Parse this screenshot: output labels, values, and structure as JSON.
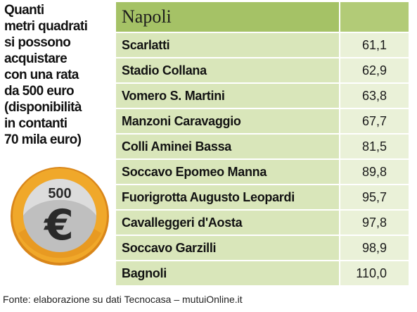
{
  "intro": {
    "lines": [
      "Quanti",
      "metri quadrati",
      "si possono",
      "acquistare",
      "con una rata",
      "da 500 euro",
      "(disponibilità",
      "in contanti",
      "70 mila euro)"
    ]
  },
  "coin": {
    "amount": "500",
    "symbol": "€",
    "colors": {
      "outer": "#f0a82a",
      "outer_dark": "#d9861a",
      "face": "#bfbfbf",
      "face_light": "#dcdcdc",
      "symbol": "#2a2a2a"
    }
  },
  "table": {
    "header": "Napoli",
    "rows": [
      {
        "name": "Scarlatti",
        "value": "61,1"
      },
      {
        "name": "Stadio Collana",
        "value": "62,9"
      },
      {
        "name": "Vomero S. Martini",
        "value": "63,8"
      },
      {
        "name": "Manzoni Caravaggio",
        "value": "67,7"
      },
      {
        "name": "Colli Aminei Bassa",
        "value": "81,5"
      },
      {
        "name": "Soccavo Epomeo Manna",
        "value": "89,8"
      },
      {
        "name": "Fuorigrotta Augusto Leopardi",
        "value": "95,7"
      },
      {
        "name": "Cavalleggeri d'Aosta",
        "value": "97,8"
      },
      {
        "name": "Soccavo Garzilli",
        "value": "98,9"
      },
      {
        "name": "Bagnoli",
        "value": "110,0"
      }
    ],
    "colors": {
      "header_bg": "#a5c266",
      "name_cell_bg": "#d9e6ba",
      "value_cell_bg": "#eaf1d8"
    }
  },
  "footer": {
    "source": "Fonte: elaborazione su dati Tecnocasa – mutuiOnline.it"
  }
}
